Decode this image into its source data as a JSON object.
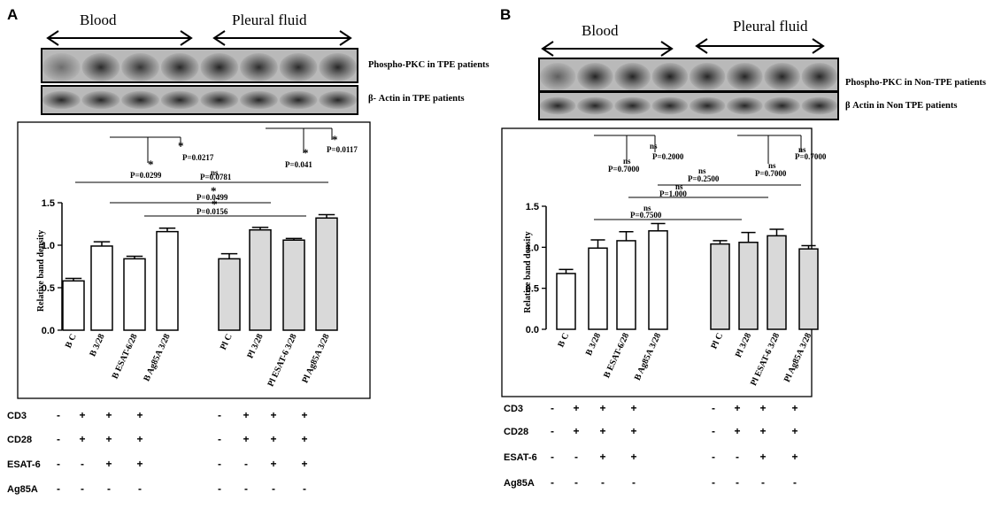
{
  "panels": [
    {
      "letter": "A",
      "groups": [
        "Blood",
        "Pleural fluid"
      ],
      "blot_labels": [
        "Phospho-PKC in TPE patients",
        "β- Actin in TPE patients"
      ],
      "phospho_intensity": [
        0.25,
        0.7,
        0.6,
        0.75,
        0.85,
        0.65,
        0.7,
        0.8
      ],
      "treatments": [
        {
          "name": "CD3",
          "signs": [
            "-",
            "+",
            "+",
            "+",
            "-",
            "+",
            "+",
            "+"
          ]
        },
        {
          "name": "CD28",
          "signs": [
            "-",
            "+",
            "+",
            "+",
            "-",
            "+",
            "+",
            "+"
          ]
        },
        {
          "name": "ESAT-6",
          "signs": [
            "-",
            "-",
            "+",
            "+",
            "-",
            "-",
            "+",
            "+"
          ]
        },
        {
          "name": "Ag85A",
          "signs": [
            "-",
            "-",
            "-",
            "-",
            "-",
            "-",
            "-",
            "-"
          ]
        }
      ],
      "annotations": [
        {
          "label": "*",
          "p": "P=0.0217"
        },
        {
          "label": "*",
          "p": "P=0.0299"
        },
        {
          "label": "*",
          "p": "P=0.041"
        },
        {
          "label": "*",
          "p": "P=0.0117"
        },
        {
          "label": "ns",
          "p": "P=0.0781"
        },
        {
          "label": "*",
          "p": "P=0.0499"
        },
        {
          "label": "*",
          "p": "P=0.0156"
        }
      ]
    },
    {
      "letter": "B",
      "groups": [
        "Blood",
        "Pleural fluid"
      ],
      "blot_labels": [
        "Phospho-PKC in Non-TPE patients",
        "β Actin in Non TPE patients"
      ],
      "phospho_intensity": [
        0.35,
        0.85,
        0.85,
        0.95,
        0.8,
        0.8,
        0.8,
        0.8
      ],
      "treatments": [
        {
          "name": "CD3",
          "signs": [
            "-",
            "+",
            "+",
            "+",
            "-",
            "+",
            "+",
            "+"
          ]
        },
        {
          "name": "CD28",
          "signs": [
            "-",
            "+",
            "+",
            "+",
            "-",
            "+",
            "+",
            "+"
          ]
        },
        {
          "name": "ESAT-6",
          "signs": [
            "-",
            "-",
            "+",
            "+",
            "-",
            "-",
            "+",
            "+"
          ]
        },
        {
          "name": "Ag85A",
          "signs": [
            "-",
            "-",
            "-",
            "-",
            "-",
            "-",
            "-",
            "-"
          ]
        }
      ],
      "annotations": [
        {
          "label": "ns",
          "p": "P=0.2000"
        },
        {
          "label": "ns",
          "p": "P=0.7000"
        },
        {
          "label": "ns",
          "p": "P=0.7000"
        },
        {
          "label": "ns",
          "p": "P=0.7000"
        },
        {
          "label": "ns",
          "p": "P=0.2500"
        },
        {
          "label": "ns",
          "p": "P=1.000"
        },
        {
          "label": "ns",
          "p": "P=0.7500"
        }
      ]
    }
  ],
  "chart_data": [
    {
      "type": "bar",
      "ylabel": "Relative band density",
      "ylim": [
        0,
        1.5
      ],
      "yticks": [
        "0.0",
        "0.5",
        "1.0",
        "1.5"
      ],
      "categories": [
        "B C",
        "B 3/28",
        "B ESAT-6/28",
        "B Ag85A 3/28",
        "Pl C",
        "Pl 3/28",
        "Pl ESAT-6 3/28",
        "Pl Ag85A 3/28"
      ],
      "values": [
        0.58,
        0.99,
        0.84,
        1.16,
        0.84,
        1.18,
        1.06,
        1.32
      ],
      "errors": [
        0.03,
        0.05,
        0.03,
        0.04,
        0.06,
        0.03,
        0.02,
        0.04
      ],
      "fill": [
        "#ffffff",
        "#ffffff",
        "#ffffff",
        "#ffffff",
        "#d9d9d9",
        "#d9d9d9",
        "#d9d9d9",
        "#d9d9d9"
      ]
    },
    {
      "type": "bar",
      "ylabel": "Relative band density",
      "ylim": [
        0,
        1.5
      ],
      "yticks": [
        "0.0",
        "0.5",
        "1.0",
        "1.5"
      ],
      "categories": [
        "B C",
        "B 3/28",
        "B ESAT-6/28",
        "B Ag85A 3/28",
        "Pl C",
        "Pl 3/28",
        "Pl ESAT-6 3/28",
        "Pl Ag85A 3/28"
      ],
      "values": [
        0.68,
        0.99,
        1.08,
        1.2,
        1.04,
        1.06,
        1.14,
        0.98
      ],
      "errors": [
        0.05,
        0.1,
        0.11,
        0.09,
        0.04,
        0.12,
        0.08,
        0.04
      ],
      "fill": [
        "#ffffff",
        "#ffffff",
        "#ffffff",
        "#ffffff",
        "#d9d9d9",
        "#d9d9d9",
        "#d9d9d9",
        "#d9d9d9"
      ]
    }
  ]
}
